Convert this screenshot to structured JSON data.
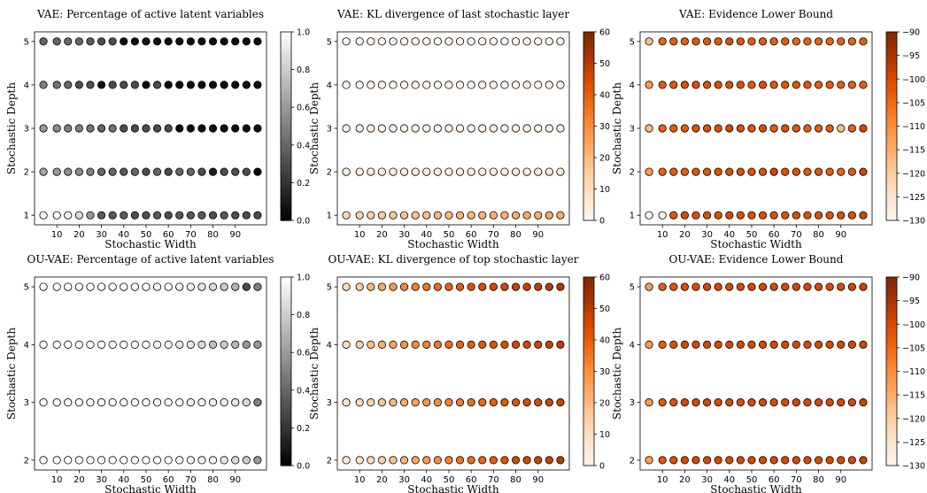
{
  "chart_data": [
    {
      "type": "scatter",
      "title": "VAE: Percentage of active latent variables",
      "xlabel": "Stochastic Width",
      "ylabel": "Stochastic Depth",
      "x": [
        4,
        10,
        15,
        20,
        25,
        30,
        35,
        40,
        45,
        50,
        55,
        60,
        65,
        70,
        75,
        80,
        85,
        90,
        95,
        100
      ],
      "x_ticks": [
        10,
        20,
        30,
        40,
        50,
        60,
        70,
        80,
        90
      ],
      "y_ticks": [
        1,
        2,
        3,
        4,
        5
      ],
      "colormap": "gray",
      "color_range": [
        0.0,
        1.0
      ],
      "colorbar_ticks": [
        "0.0",
        "0.2",
        "0.4",
        "0.6",
        "0.8",
        "1.0"
      ],
      "rows": [
        {
          "depth": 5,
          "values": [
            0.4,
            0.4,
            0.4,
            0.4,
            0.35,
            0.3,
            0.3,
            0.05,
            0.05,
            0.05,
            0.05,
            0.05,
            0.05,
            0.05,
            0.05,
            0.05,
            0.05,
            0.05,
            0.05,
            0.05
          ]
        },
        {
          "depth": 4,
          "values": [
            0.5,
            0.45,
            0.4,
            0.3,
            0.3,
            0.05,
            0.3,
            0.3,
            0.3,
            0.05,
            0.3,
            0.05,
            0.05,
            0.05,
            0.05,
            0.05,
            0.05,
            0.05,
            0.05,
            0.05
          ]
        },
        {
          "depth": 3,
          "values": [
            0.6,
            0.55,
            0.5,
            0.5,
            0.45,
            0.4,
            0.45,
            0.3,
            0.3,
            0.3,
            0.3,
            0.3,
            0.05,
            0.05,
            0.05,
            0.05,
            0.05,
            0.05,
            0.05,
            0.05
          ]
        },
        {
          "depth": 2,
          "values": [
            0.65,
            0.6,
            0.55,
            0.55,
            0.5,
            0.4,
            0.4,
            0.35,
            0.4,
            0.3,
            0.4,
            0.3,
            0.4,
            0.4,
            0.3,
            0.1,
            0.3,
            0.3,
            0.3,
            0.05
          ]
        },
        {
          "depth": 1,
          "values": [
            1.0,
            1.0,
            0.95,
            0.85,
            0.6,
            0.35,
            0.35,
            0.35,
            0.3,
            0.3,
            0.35,
            0.3,
            0.35,
            0.35,
            0.35,
            0.3,
            0.35,
            0.3,
            0.3,
            0.3
          ]
        }
      ]
    },
    {
      "type": "scatter",
      "title": "VAE: KL divergence of last stochastic layer",
      "xlabel": "Stochastic Width",
      "ylabel": "Stochastic Depth",
      "x": [
        4,
        10,
        15,
        20,
        25,
        30,
        35,
        40,
        45,
        50,
        55,
        60,
        65,
        70,
        75,
        80,
        85,
        90,
        95,
        100
      ],
      "x_ticks": [
        10,
        20,
        30,
        40,
        50,
        60,
        70,
        80,
        90
      ],
      "y_ticks": [
        1,
        2,
        3,
        4,
        5
      ],
      "colormap": "oranges",
      "color_range": [
        0,
        60
      ],
      "colorbar_ticks": [
        "0",
        "10",
        "20",
        "30",
        "40",
        "50",
        "60"
      ],
      "rows": [
        {
          "depth": 5,
          "values": [
            1,
            1,
            1,
            1,
            1,
            1,
            1,
            1,
            1,
            1,
            1,
            1,
            1,
            1,
            1,
            1,
            1,
            1,
            1,
            1
          ]
        },
        {
          "depth": 4,
          "values": [
            1,
            1,
            1,
            1,
            1,
            1,
            1,
            1,
            1,
            1,
            1,
            1,
            1,
            1,
            1,
            1,
            1,
            1,
            1,
            1
          ]
        },
        {
          "depth": 3,
          "values": [
            2,
            2,
            2,
            2,
            2,
            2,
            2,
            2,
            2,
            2,
            2,
            2,
            2,
            2,
            2,
            2,
            2,
            2,
            2,
            2
          ]
        },
        {
          "depth": 2,
          "values": [
            4,
            5,
            5,
            5,
            5,
            5,
            5,
            5,
            5,
            5,
            5,
            5,
            5,
            5,
            5,
            5,
            5,
            5,
            5,
            5
          ]
        },
        {
          "depth": 1,
          "values": [
            12,
            14,
            15,
            16,
            17,
            18,
            18,
            19,
            20,
            20,
            21,
            21,
            22,
            22,
            22,
            23,
            23,
            23,
            24,
            24
          ]
        }
      ]
    },
    {
      "type": "scatter",
      "title": "VAE: Evidence Lower Bound",
      "xlabel": "Stochastic Width",
      "ylabel": "Stochastic Depth",
      "x": [
        4,
        10,
        15,
        20,
        25,
        30,
        35,
        40,
        45,
        50,
        55,
        60,
        65,
        70,
        75,
        80,
        85,
        90,
        95,
        100
      ],
      "x_ticks": [
        10,
        20,
        30,
        40,
        50,
        60,
        70,
        80,
        90
      ],
      "y_ticks": [
        1,
        2,
        3,
        4,
        5
      ],
      "colormap": "oranges",
      "color_range": [
        -130,
        -90
      ],
      "colorbar_ticks": [
        "−130",
        "−125",
        "−120",
        "−115",
        "−110",
        "−105",
        "−100",
        "−95",
        "−90"
      ],
      "rows": [
        {
          "depth": 5,
          "values": [
            -117,
            -104,
            -103,
            -103,
            -102,
            -102,
            -102,
            -101,
            -102,
            -103,
            -103,
            -103,
            -103,
            -104,
            -104,
            -104,
            -104,
            -104,
            -104,
            -103
          ]
        },
        {
          "depth": 4,
          "values": [
            -112,
            -103,
            -102,
            -101,
            -101,
            -101,
            -101,
            -101,
            -101,
            -102,
            -101,
            -102,
            -102,
            -102,
            -102,
            -103,
            -103,
            -103,
            -103,
            -103
          ]
        },
        {
          "depth": 3,
          "values": [
            -117,
            -104,
            -103,
            -103,
            -101,
            -101,
            -101,
            -100,
            -101,
            -102,
            -101,
            -103,
            -101,
            -102,
            -103,
            -103,
            -103,
            -117,
            -104,
            -100
          ]
        },
        {
          "depth": 2,
          "values": [
            -112,
            -104,
            -103,
            -103,
            -102,
            -102,
            -101,
            -101,
            -101,
            -102,
            -101,
            -99,
            -101,
            -101,
            -102,
            -102,
            -103,
            -104,
            -103,
            -99
          ]
        },
        {
          "depth": 1,
          "values": [
            -130,
            -130,
            -102,
            -100,
            -101,
            -101,
            -101,
            -100,
            -101,
            -101,
            -101,
            -101,
            -101,
            -101,
            -101,
            -101,
            -101,
            -101,
            -101,
            -99
          ]
        }
      ]
    },
    {
      "type": "scatter",
      "title": "OU-VAE: Percentage of active latent variables",
      "xlabel": "Stochastic Width",
      "ylabel": "Stochastic Depth",
      "x": [
        4,
        10,
        15,
        20,
        25,
        30,
        35,
        40,
        45,
        50,
        55,
        60,
        65,
        70,
        75,
        80,
        85,
        90,
        95,
        100
      ],
      "x_ticks": [
        10,
        20,
        30,
        40,
        50,
        60,
        70,
        80,
        90
      ],
      "y_ticks": [
        2,
        3,
        4,
        5
      ],
      "colormap": "gray",
      "color_range": [
        0.0,
        1.0
      ],
      "colorbar_ticks": [
        "0.0",
        "0.2",
        "0.4",
        "0.6",
        "0.8",
        "1.0"
      ],
      "rows": [
        {
          "depth": 5,
          "values": [
            1.0,
            1.0,
            1.0,
            1.0,
            1.0,
            1.0,
            1.0,
            1.0,
            1.0,
            1.0,
            1.0,
            1.0,
            0.95,
            0.95,
            0.9,
            0.85,
            0.8,
            0.7,
            0.3,
            0.5
          ]
        },
        {
          "depth": 4,
          "values": [
            1.0,
            1.0,
            1.0,
            1.0,
            1.0,
            1.0,
            1.0,
            1.0,
            1.0,
            1.0,
            0.95,
            0.95,
            0.9,
            0.9,
            0.85,
            0.75,
            0.8,
            0.7,
            0.6,
            0.6
          ]
        },
        {
          "depth": 3,
          "values": [
            1.0,
            1.0,
            1.0,
            1.0,
            1.0,
            1.0,
            1.0,
            1.0,
            1.0,
            1.0,
            1.0,
            1.0,
            1.0,
            0.95,
            0.95,
            0.95,
            0.95,
            0.9,
            0.85,
            0.5
          ]
        },
        {
          "depth": 2,
          "values": [
            1.0,
            1.0,
            1.0,
            1.0,
            1.0,
            1.0,
            1.0,
            1.0,
            1.0,
            1.0,
            1.0,
            1.0,
            1.0,
            0.95,
            0.95,
            0.95,
            0.9,
            0.85,
            0.8,
            0.6
          ]
        }
      ]
    },
    {
      "type": "scatter",
      "title": "OU-VAE: KL divergence of top stochastic layer",
      "xlabel": "Stochastic Width",
      "ylabel": "Stochastic Depth",
      "x": [
        4,
        10,
        15,
        20,
        25,
        30,
        35,
        40,
        45,
        50,
        55,
        60,
        65,
        70,
        75,
        80,
        85,
        90,
        95,
        100
      ],
      "x_ticks": [
        10,
        20,
        30,
        40,
        50,
        60,
        70,
        80,
        90
      ],
      "y_ticks": [
        2,
        3,
        4,
        5
      ],
      "colormap": "oranges",
      "color_range": [
        0,
        60
      ],
      "colorbar_ticks": [
        "0",
        "10",
        "20",
        "30",
        "40",
        "50",
        "60"
      ],
      "rows": [
        {
          "depth": 5,
          "values": [
            12,
            16,
            20,
            24,
            28,
            31,
            33,
            35,
            37,
            39,
            41,
            43,
            44,
            45,
            46,
            47,
            48,
            49,
            50,
            51
          ]
        },
        {
          "depth": 4,
          "values": [
            11,
            15,
            19,
            23,
            26,
            29,
            31,
            33,
            35,
            37,
            39,
            41,
            42,
            43,
            44,
            45,
            46,
            47,
            48,
            49
          ]
        },
        {
          "depth": 3,
          "values": [
            8,
            11,
            14,
            17,
            20,
            23,
            25,
            28,
            30,
            32,
            34,
            36,
            38,
            40,
            42,
            43,
            44,
            45,
            46,
            47
          ]
        },
        {
          "depth": 2,
          "values": [
            6,
            9,
            12,
            15,
            18,
            21,
            24,
            27,
            30,
            33,
            35,
            37,
            39,
            41,
            43,
            45,
            46,
            47,
            48,
            50
          ]
        }
      ]
    },
    {
      "type": "scatter",
      "title": "OU-VAE: Evidence Lower Bound",
      "xlabel": "Stochastic Width",
      "ylabel": "Stochastic Depth",
      "x": [
        4,
        10,
        15,
        20,
        25,
        30,
        35,
        40,
        45,
        50,
        55,
        60,
        65,
        70,
        75,
        80,
        85,
        90,
        95,
        100
      ],
      "x_ticks": [
        10,
        20,
        30,
        40,
        50,
        60,
        70,
        80,
        90
      ],
      "y_ticks": [
        2,
        3,
        4,
        5
      ],
      "colormap": "oranges",
      "color_range": [
        -130,
        -90
      ],
      "colorbar_ticks": [
        "−130",
        "−125",
        "−120",
        "−115",
        "−110",
        "−105",
        "−100",
        "−95",
        "−90"
      ],
      "rows": [
        {
          "depth": 5,
          "values": [
            -112,
            -103,
            -102,
            -101,
            -101,
            -100,
            -100,
            -100,
            -100,
            -100,
            -100,
            -100,
            -100,
            -100,
            -100,
            -100,
            -100,
            -100,
            -100,
            -99
          ]
        },
        {
          "depth": 4,
          "values": [
            -112,
            -103,
            -101,
            -100,
            -100,
            -100,
            -100,
            -100,
            -100,
            -100,
            -100,
            -100,
            -100,
            -100,
            -100,
            -100,
            -100,
            -100,
            -100,
            -99
          ]
        },
        {
          "depth": 3,
          "values": [
            -112,
            -102,
            -101,
            -100,
            -100,
            -100,
            -100,
            -100,
            -100,
            -100,
            -100,
            -100,
            -100,
            -100,
            -100,
            -100,
            -100,
            -100,
            -100,
            -99
          ]
        },
        {
          "depth": 2,
          "values": [
            -113,
            -102,
            -101,
            -100,
            -100,
            -100,
            -100,
            -100,
            -100,
            -100,
            -100,
            -100,
            -100,
            -100,
            -100,
            -100,
            -100,
            -100,
            -100,
            -99
          ]
        }
      ]
    }
  ]
}
